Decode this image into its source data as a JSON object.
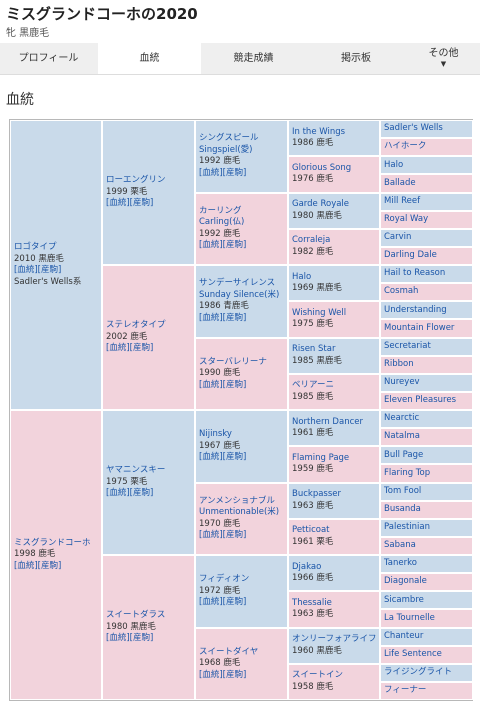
{
  "header": {
    "title": "ミスグランドコーホの2020",
    "subtitle": "牝  黒鹿毛"
  },
  "tabs": [
    {
      "label": "プロフィール"
    },
    {
      "label": "血統"
    },
    {
      "label": "競走成績"
    },
    {
      "label": "掲示板"
    },
    {
      "label": "その他",
      "caret": "▼"
    }
  ],
  "section": {
    "title": "血統"
  },
  "links_label": "[血統][産駒]",
  "pedigree": [
    {
      "name": "ロゴタイプ",
      "info": [
        "2010 黒鹿毛"
      ],
      "links": true,
      "extra": "Sadler's Wells系"
    },
    {
      "name": "ローエングリン",
      "info": [
        "1999 栗毛"
      ],
      "links": true
    },
    {
      "name": "シングスピール",
      "name2": "Singspiel(愛)",
      "info": [
        "1992 鹿毛"
      ],
      "links": true
    },
    {
      "name": "In the Wings",
      "info": [
        "1986 鹿毛"
      ]
    },
    {
      "name": "Sadler's Wells"
    },
    {
      "name": "ハイホーク"
    },
    {
      "name": "Glorious Song",
      "info": [
        "1976 鹿毛"
      ]
    },
    {
      "name": "Halo"
    },
    {
      "name": "Ballade"
    },
    {
      "name": "カーリング",
      "name2": "Carling(仏)",
      "info": [
        "1992 鹿毛"
      ],
      "links": true
    },
    {
      "name": "Garde Royale",
      "info": [
        "1980 黒鹿毛"
      ]
    },
    {
      "name": "Mill Reef"
    },
    {
      "name": "Royal Way"
    },
    {
      "name": "Corraleja",
      "info": [
        "1982 鹿毛"
      ]
    },
    {
      "name": "Carvin"
    },
    {
      "name": "Darling Dale"
    },
    {
      "name": "ステレオタイプ",
      "info": [
        "2002 鹿毛"
      ],
      "links": true
    },
    {
      "name": "サンデーサイレンス",
      "name2": "Sunday Silence(米)",
      "info": [
        "1986 青鹿毛"
      ],
      "links": true
    },
    {
      "name": "Halo",
      "info": [
        "1969 黒鹿毛"
      ]
    },
    {
      "name": "Hail to Reason"
    },
    {
      "name": "Cosmah"
    },
    {
      "name": "Wishing Well",
      "info": [
        "1975 鹿毛"
      ]
    },
    {
      "name": "Understanding"
    },
    {
      "name": "Mountain Flower"
    },
    {
      "name": "スターバレリーナ",
      "info": [
        "1990 鹿毛"
      ],
      "links": true
    },
    {
      "name": "Risen Star",
      "info": [
        "1985 黒鹿毛"
      ]
    },
    {
      "name": "Secretariat"
    },
    {
      "name": "Ribbon"
    },
    {
      "name": "ベリアーニ",
      "info": [
        "1985 鹿毛"
      ]
    },
    {
      "name": "Nureyev"
    },
    {
      "name": "Eleven Pleasures"
    },
    {
      "name": "ミスグランドコーホ",
      "info": [
        "1998 鹿毛"
      ],
      "links": true
    },
    {
      "name": "ヤマニンスキー",
      "info": [
        "1975 栗毛"
      ],
      "links": true
    },
    {
      "name": "Nijinsky",
      "info": [
        "1967 鹿毛"
      ],
      "links": true
    },
    {
      "name": "Northern Dancer",
      "info": [
        "1961 鹿毛"
      ]
    },
    {
      "name": "Nearctic"
    },
    {
      "name": "Natalma"
    },
    {
      "name": "Flaming Page",
      "info": [
        "1959 鹿毛"
      ]
    },
    {
      "name": "Bull Page"
    },
    {
      "name": "Flaring Top"
    },
    {
      "name": "アンメンショナブル",
      "name2": "Unmentionable(米)",
      "info": [
        "1970 鹿毛"
      ],
      "links": true
    },
    {
      "name": "Buckpasser",
      "info": [
        "1963 鹿毛"
      ]
    },
    {
      "name": "Tom Fool"
    },
    {
      "name": "Busanda"
    },
    {
      "name": "Petticoat",
      "info": [
        "1961 栗毛"
      ]
    },
    {
      "name": "Palestinian"
    },
    {
      "name": "Sabana"
    },
    {
      "name": "スイートダラス",
      "info": [
        "1980 黒鹿毛"
      ],
      "links": true
    },
    {
      "name": "フィディオン",
      "info": [
        "1972 鹿毛"
      ],
      "links": true
    },
    {
      "name": "Djakao",
      "info": [
        "1966 鹿毛"
      ]
    },
    {
      "name": "Tanerko"
    },
    {
      "name": "Diagonale"
    },
    {
      "name": "Thessalie",
      "info": [
        "1963 鹿毛"
      ]
    },
    {
      "name": "Sicambre"
    },
    {
      "name": "La Tournelle"
    },
    {
      "name": "スイートダイヤ",
      "info": [
        "1968 鹿毛"
      ],
      "links": true
    },
    {
      "name": "オンリーフォアライフ",
      "info": [
        "1960 黒鹿毛"
      ]
    },
    {
      "name": "Chanteur"
    },
    {
      "name": "Life Sentence"
    },
    {
      "name": "スイートイン",
      "info": [
        "1958 鹿毛"
      ]
    },
    {
      "name": "ライジングライト"
    },
    {
      "name": "フィーナー"
    }
  ]
}
